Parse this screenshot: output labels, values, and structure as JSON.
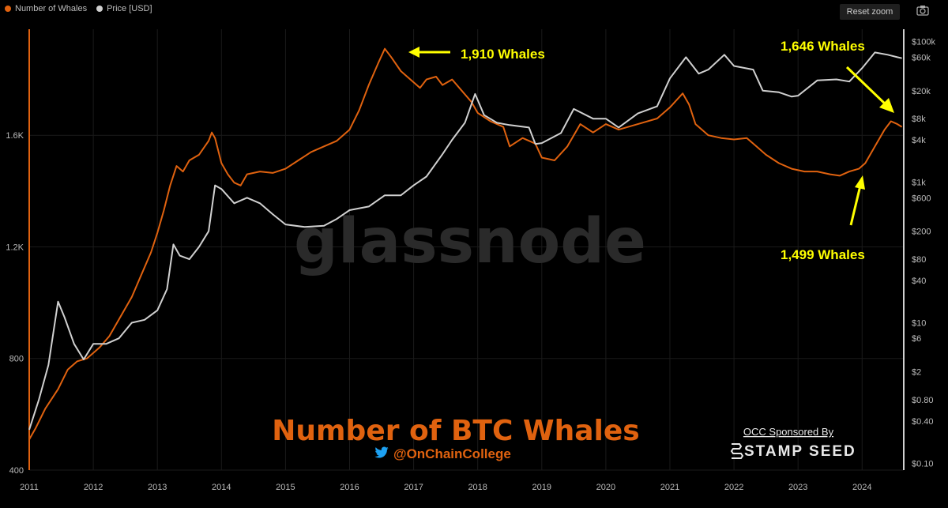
{
  "legend": {
    "series1": {
      "label": "Number of Whales",
      "color": "#e0620f"
    },
    "series2": {
      "label": "Price [USD]",
      "color": "#d0d0d0"
    }
  },
  "toolbar": {
    "reset_label": "Reset zoom",
    "camera_icon": "camera-icon"
  },
  "watermark": "glassnode",
  "title": "Number of BTC Whales",
  "handle": "@OnChainCollege",
  "twitter_icon": "twitter-bird-icon",
  "sponsor": {
    "line1": "OCC Sponsored By",
    "line2": "STAMP SEED"
  },
  "annotations": [
    {
      "text": "1,910 Whales"
    },
    {
      "text": "1,646 Whales"
    },
    {
      "text": "1,499 Whales"
    }
  ],
  "chart_data": {
    "type": "line",
    "x_axis": {
      "ticks": [
        "2011",
        "2012",
        "2013",
        "2014",
        "2015",
        "2016",
        "2017",
        "2018",
        "2019",
        "2020",
        "2021",
        "2022",
        "2023",
        "2024"
      ],
      "range": [
        2011.0,
        2024.65
      ]
    },
    "y_left": {
      "ticks": [
        "400",
        "800",
        "1.2K",
        "1.6K"
      ],
      "values": [
        400,
        800,
        1200,
        1600
      ],
      "range": [
        400,
        1980
      ],
      "color": "#e0620f"
    },
    "y_right": {
      "scale": "log",
      "ticks": [
        "$0.10",
        "$0.40",
        "$0.80",
        "$2",
        "$6",
        "$10",
        "$40",
        "$80",
        "$200",
        "$600",
        "$1k",
        "$4k",
        "$8k",
        "$20k",
        "$60k",
        "$100k"
      ],
      "values": [
        0.1,
        0.4,
        0.8,
        2,
        6,
        10,
        40,
        80,
        200,
        600,
        1000,
        4000,
        8000,
        20000,
        60000,
        100000
      ],
      "range": [
        0.08,
        150000
      ]
    },
    "grid": true,
    "series": [
      {
        "name": "Number of Whales",
        "color": "#e0620f",
        "axis": "left",
        "points": [
          [
            2011.0,
            510
          ],
          [
            2011.1,
            550
          ],
          [
            2011.25,
            620
          ],
          [
            2011.45,
            690
          ],
          [
            2011.6,
            760
          ],
          [
            2011.75,
            790
          ],
          [
            2011.9,
            800
          ],
          [
            2012.0,
            820
          ],
          [
            2012.1,
            840
          ],
          [
            2012.25,
            880
          ],
          [
            2012.45,
            960
          ],
          [
            2012.6,
            1020
          ],
          [
            2012.75,
            1100
          ],
          [
            2012.9,
            1180
          ],
          [
            2013.0,
            1250
          ],
          [
            2013.1,
            1330
          ],
          [
            2013.2,
            1420
          ],
          [
            2013.3,
            1490
          ],
          [
            2013.4,
            1470
          ],
          [
            2013.5,
            1510
          ],
          [
            2013.65,
            1530
          ],
          [
            2013.8,
            1580
          ],
          [
            2013.85,
            1610
          ],
          [
            2013.9,
            1590
          ],
          [
            2014.0,
            1500
          ],
          [
            2014.1,
            1460
          ],
          [
            2014.2,
            1430
          ],
          [
            2014.3,
            1420
          ],
          [
            2014.4,
            1460
          ],
          [
            2014.6,
            1470
          ],
          [
            2014.8,
            1465
          ],
          [
            2015.0,
            1480
          ],
          [
            2015.2,
            1510
          ],
          [
            2015.4,
            1540
          ],
          [
            2015.6,
            1560
          ],
          [
            2015.8,
            1580
          ],
          [
            2016.0,
            1620
          ],
          [
            2016.15,
            1690
          ],
          [
            2016.3,
            1780
          ],
          [
            2016.45,
            1860
          ],
          [
            2016.55,
            1910
          ],
          [
            2016.65,
            1880
          ],
          [
            2016.8,
            1830
          ],
          [
            2016.95,
            1800
          ],
          [
            2017.1,
            1770
          ],
          [
            2017.2,
            1800
          ],
          [
            2017.35,
            1810
          ],
          [
            2017.45,
            1780
          ],
          [
            2017.6,
            1800
          ],
          [
            2017.75,
            1760
          ],
          [
            2017.9,
            1720
          ],
          [
            2018.0,
            1680
          ],
          [
            2018.2,
            1650
          ],
          [
            2018.4,
            1630
          ],
          [
            2018.5,
            1560
          ],
          [
            2018.7,
            1590
          ],
          [
            2018.9,
            1570
          ],
          [
            2019.0,
            1520
          ],
          [
            2019.2,
            1510
          ],
          [
            2019.4,
            1560
          ],
          [
            2019.6,
            1640
          ],
          [
            2019.8,
            1610
          ],
          [
            2020.0,
            1640
          ],
          [
            2020.2,
            1620
          ],
          [
            2020.5,
            1640
          ],
          [
            2020.8,
            1660
          ],
          [
            2021.0,
            1700
          ],
          [
            2021.2,
            1750
          ],
          [
            2021.3,
            1710
          ],
          [
            2021.4,
            1640
          ],
          [
            2021.6,
            1600
          ],
          [
            2021.8,
            1590
          ],
          [
            2022.0,
            1585
          ],
          [
            2022.2,
            1590
          ],
          [
            2022.35,
            1560
          ],
          [
            2022.5,
            1530
          ],
          [
            2022.7,
            1500
          ],
          [
            2022.9,
            1480
          ],
          [
            2023.1,
            1470
          ],
          [
            2023.3,
            1470
          ],
          [
            2023.5,
            1460
          ],
          [
            2023.65,
            1455
          ],
          [
            2023.8,
            1470
          ],
          [
            2023.95,
            1480
          ],
          [
            2024.05,
            1500
          ],
          [
            2024.2,
            1560
          ],
          [
            2024.35,
            1620
          ],
          [
            2024.45,
            1650
          ],
          [
            2024.55,
            1640
          ],
          [
            2024.62,
            1630
          ]
        ]
      },
      {
        "name": "Price [USD]",
        "color": "#d0d0d0",
        "axis": "right",
        "points": [
          [
            2011.0,
            0.3
          ],
          [
            2011.15,
            0.8
          ],
          [
            2011.3,
            2.5
          ],
          [
            2011.45,
            20
          ],
          [
            2011.55,
            12
          ],
          [
            2011.7,
            5
          ],
          [
            2011.85,
            3
          ],
          [
            2012.0,
            5
          ],
          [
            2012.2,
            5
          ],
          [
            2012.4,
            6
          ],
          [
            2012.6,
            10
          ],
          [
            2012.8,
            11
          ],
          [
            2013.0,
            15
          ],
          [
            2013.15,
            30
          ],
          [
            2013.25,
            130
          ],
          [
            2013.35,
            90
          ],
          [
            2013.5,
            80
          ],
          [
            2013.65,
            120
          ],
          [
            2013.8,
            200
          ],
          [
            2013.9,
            900
          ],
          [
            2014.0,
            800
          ],
          [
            2014.2,
            500
          ],
          [
            2014.4,
            600
          ],
          [
            2014.6,
            500
          ],
          [
            2014.8,
            350
          ],
          [
            2015.0,
            250
          ],
          [
            2015.3,
            230
          ],
          [
            2015.6,
            240
          ],
          [
            2015.8,
            300
          ],
          [
            2016.0,
            400
          ],
          [
            2016.3,
            450
          ],
          [
            2016.55,
            650
          ],
          [
            2016.8,
            650
          ],
          [
            2017.0,
            900
          ],
          [
            2017.2,
            1200
          ],
          [
            2017.45,
            2500
          ],
          [
            2017.6,
            4000
          ],
          [
            2017.8,
            7000
          ],
          [
            2017.96,
            18000
          ],
          [
            2018.1,
            9000
          ],
          [
            2018.3,
            7000
          ],
          [
            2018.5,
            6500
          ],
          [
            2018.8,
            6000
          ],
          [
            2018.9,
            3500
          ],
          [
            2019.0,
            3600
          ],
          [
            2019.3,
            5000
          ],
          [
            2019.5,
            11000
          ],
          [
            2019.8,
            8000
          ],
          [
            2020.0,
            8000
          ],
          [
            2020.2,
            6000
          ],
          [
            2020.5,
            9500
          ],
          [
            2020.8,
            12000
          ],
          [
            2021.0,
            30000
          ],
          [
            2021.25,
            60000
          ],
          [
            2021.45,
            35000
          ],
          [
            2021.6,
            40000
          ],
          [
            2021.85,
            65000
          ],
          [
            2022.0,
            45000
          ],
          [
            2022.3,
            40000
          ],
          [
            2022.45,
            20000
          ],
          [
            2022.7,
            19000
          ],
          [
            2022.9,
            16500
          ],
          [
            2023.0,
            17000
          ],
          [
            2023.3,
            28000
          ],
          [
            2023.6,
            29000
          ],
          [
            2023.8,
            27000
          ],
          [
            2024.0,
            42000
          ],
          [
            2024.2,
            70000
          ],
          [
            2024.4,
            65000
          ],
          [
            2024.55,
            60000
          ],
          [
            2024.62,
            58000
          ]
        ]
      }
    ]
  }
}
